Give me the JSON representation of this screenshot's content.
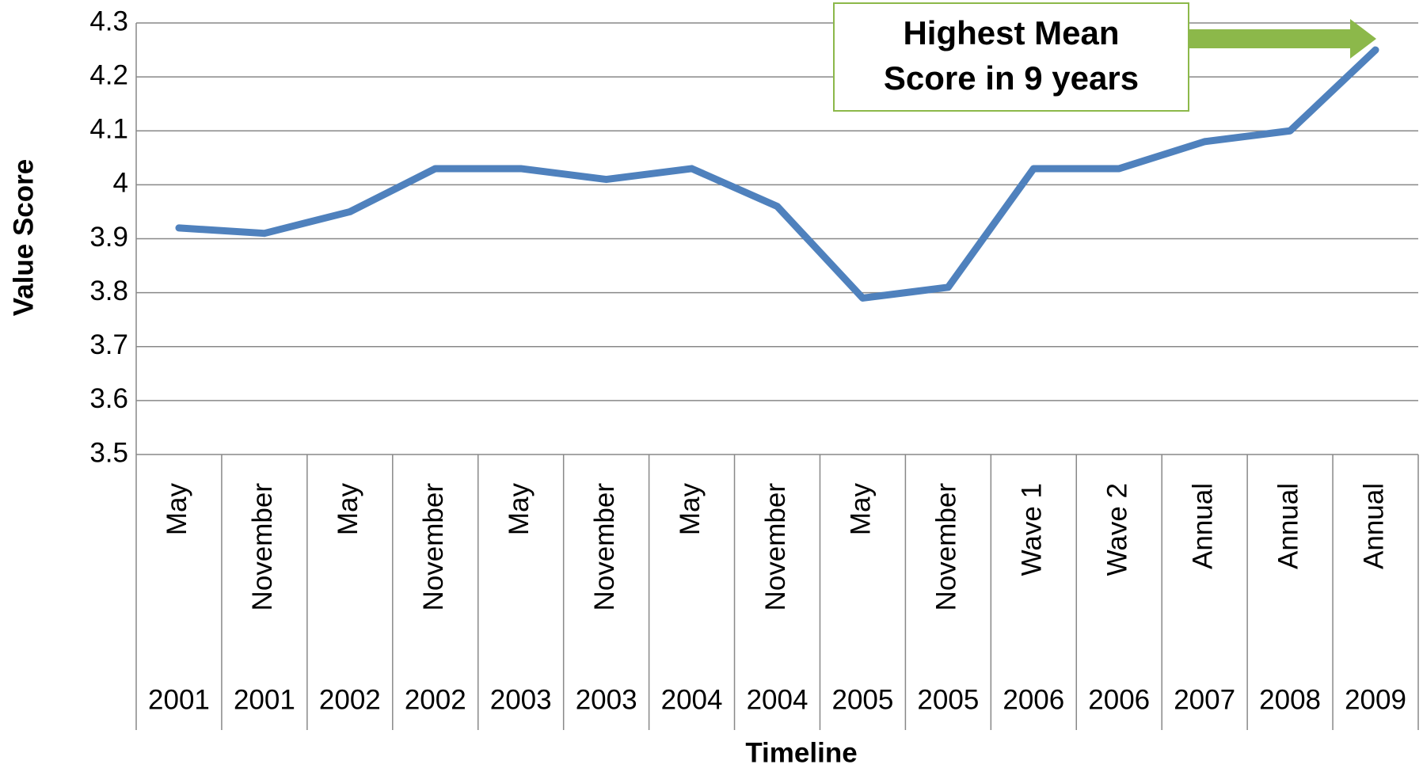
{
  "chart_data": {
    "type": "line",
    "x_label": "Timeline",
    "y_label": "Value Score",
    "categories": [
      "May",
      "November",
      "May",
      "November",
      "May",
      "November",
      "May",
      "November",
      "May",
      "November",
      "Wave 1",
      "Wave 2",
      "Annual",
      "Annual",
      "Annual"
    ],
    "category_groups": [
      "2001",
      "2001",
      "2002",
      "2002",
      "2003",
      "2003",
      "2004",
      "2004",
      "2005",
      "2005",
      "2006",
      "2006",
      "2007",
      "2008",
      "2009"
    ],
    "series": [
      {
        "name": "Value Score",
        "color": "#4f81bd",
        "values": [
          3.92,
          3.91,
          3.95,
          4.03,
          4.03,
          4.01,
          4.03,
          3.96,
          3.79,
          3.81,
          4.03,
          4.03,
          4.08,
          4.1,
          4.25
        ]
      }
    ],
    "ylim": [
      3.5,
      4.3
    ],
    "yticks": [
      3.5,
      3.6,
      3.7,
      3.8,
      3.9,
      4,
      4.1,
      4.2,
      4.3
    ],
    "grid": true,
    "annotation": {
      "lines": [
        "Highest Mean",
        "Score in 9 years"
      ],
      "color": "#8cb84a"
    }
  }
}
